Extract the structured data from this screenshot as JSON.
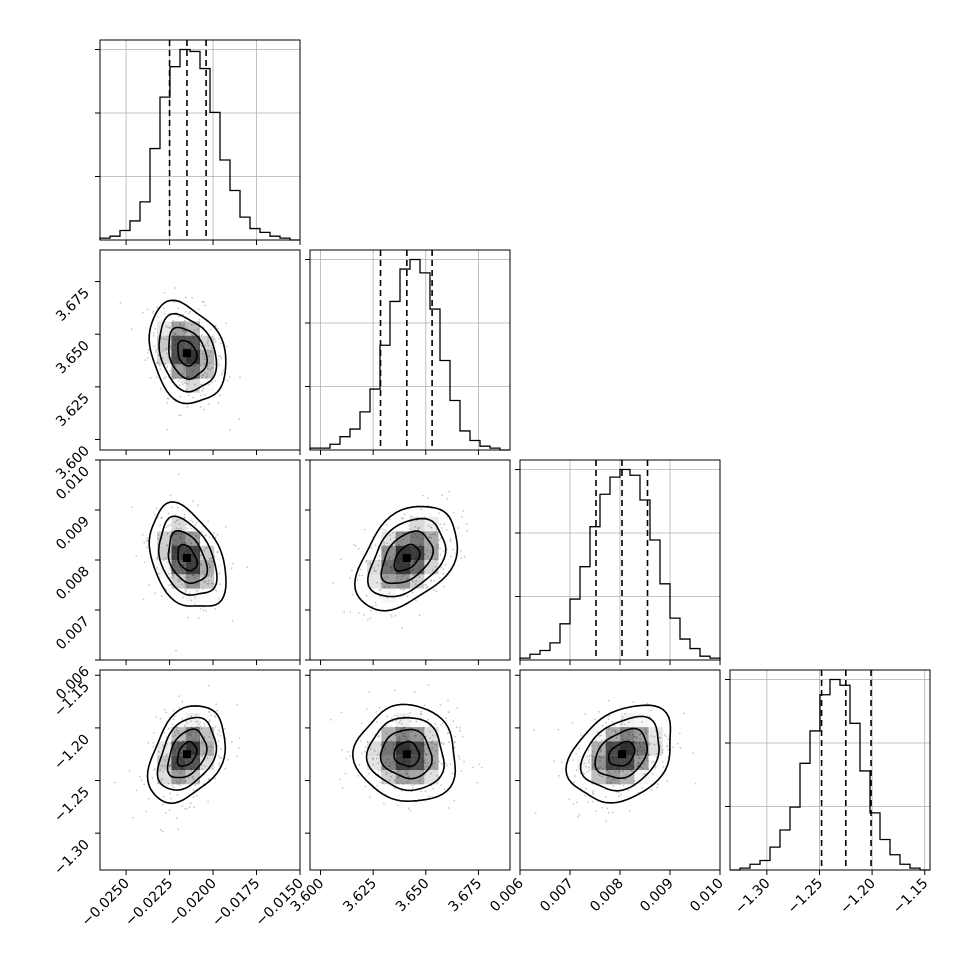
{
  "chart_data": {
    "type": "corner",
    "params": [
      {
        "range": [
          -0.0265,
          -0.015
        ],
        "ticks": [
          -0.025,
          -0.0225,
          -0.02,
          -0.0175,
          -0.015
        ],
        "tick_labels": [
          "−0.0250",
          "−0.0225",
          "−0.0200",
          "−0.0175",
          "−0.0150"
        ],
        "quantiles": [
          -0.0225,
          -0.0215,
          -0.0204
        ],
        "center": -0.0215,
        "sigma": 0.0011,
        "hist": [
          0.01,
          0.02,
          0.05,
          0.1,
          0.2,
          0.48,
          0.75,
          0.91,
          1.0,
          0.99,
          0.9,
          0.67,
          0.42,
          0.26,
          0.12,
          0.06,
          0.04,
          0.02,
          0.01,
          0.0
        ]
      },
      {
        "range": [
          3.595,
          3.69
        ],
        "ticks": [
          3.6,
          3.625,
          3.65,
          3.675
        ],
        "tick_labels": [
          "3.600",
          "3.625",
          "3.650",
          "3.675"
        ],
        "quantiles": [
          3.6285,
          3.641,
          3.653
        ],
        "center": 3.641,
        "sigma": 0.012,
        "hist": [
          0.01,
          0.01,
          0.03,
          0.07,
          0.11,
          0.2,
          0.32,
          0.55,
          0.78,
          0.95,
          1.0,
          0.93,
          0.74,
          0.47,
          0.26,
          0.1,
          0.05,
          0.02,
          0.01,
          0.0
        ]
      },
      {
        "range": [
          0.006,
          0.01
        ],
        "ticks": [
          0.006,
          0.007,
          0.008,
          0.009,
          0.01
        ],
        "tick_labels": [
          "0.006",
          "0.007",
          "0.008",
          "0.009",
          "0.010"
        ],
        "quantiles": [
          0.00752,
          0.00804,
          0.00855
        ],
        "center": 0.00804,
        "sigma": 0.00052,
        "hist": [
          0.01,
          0.03,
          0.05,
          0.09,
          0.19,
          0.32,
          0.49,
          0.7,
          0.87,
          0.96,
          1.0,
          0.97,
          0.84,
          0.63,
          0.4,
          0.22,
          0.11,
          0.06,
          0.02,
          0.01
        ]
      },
      {
        "range": [
          -1.335,
          -1.145
        ],
        "ticks": [
          -1.3,
          -1.25,
          -1.2,
          -1.15
        ],
        "tick_labels": [
          "−1.30",
          "−1.25",
          "−1.20",
          "−1.15"
        ],
        "quantiles": [
          -1.248,
          -1.225,
          -1.201
        ],
        "center": -1.225,
        "sigma": 0.023,
        "hist": [
          0.0,
          0.01,
          0.03,
          0.05,
          0.12,
          0.21,
          0.33,
          0.56,
          0.73,
          0.92,
          1.0,
          0.97,
          0.77,
          0.52,
          0.3,
          0.16,
          0.08,
          0.03,
          0.01,
          0.0
        ]
      }
    ],
    "correlations": {
      "1-0": -0.25,
      "2-0": -0.35,
      "3-0": 0.35,
      "2-1": 0.4,
      "3-1": -0.05,
      "3-2": 0.3
    },
    "contour_levels_sigma": [
      0.5,
      1.0,
      1.5,
      2.0
    ],
    "scatter_points_per_panel": 320,
    "grid": true,
    "colors": {
      "line": "#000000",
      "grid": "#b0b0b0",
      "scatter": "#9a9a9a",
      "density": "#000000"
    }
  }
}
